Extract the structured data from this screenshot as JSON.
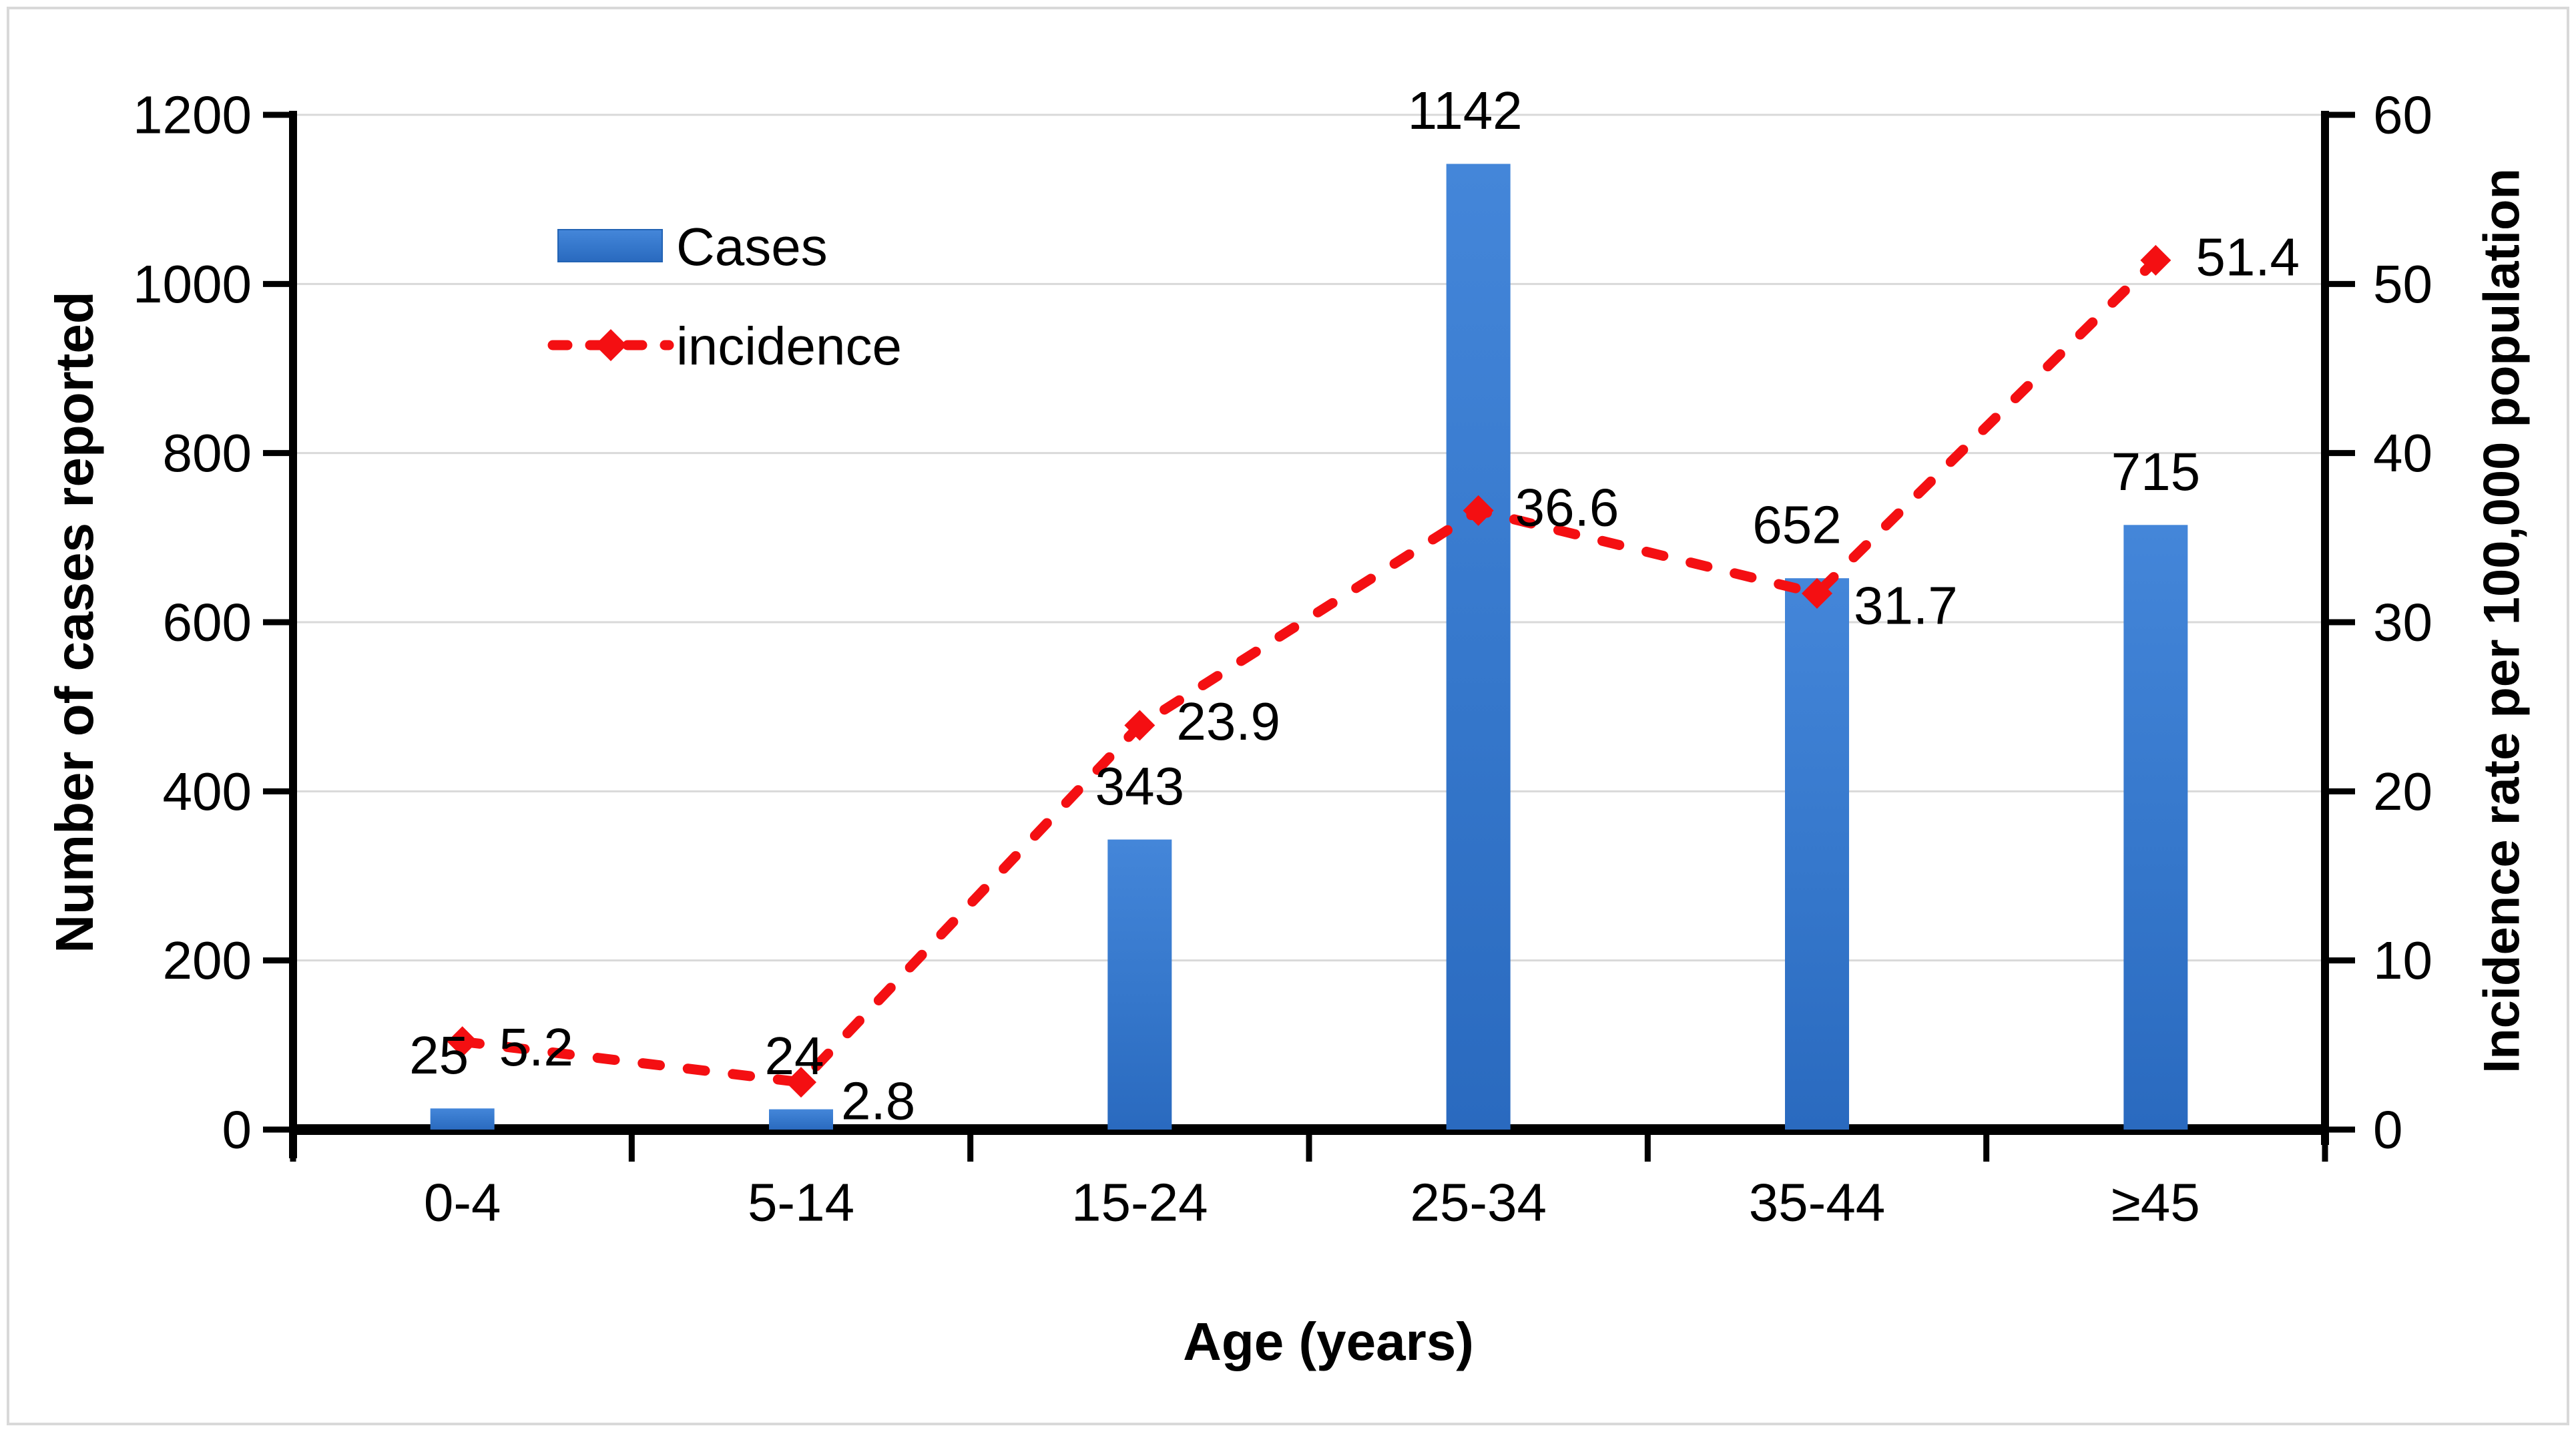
{
  "figure": {
    "background": "#ffffff",
    "border_color": "#d9d9d9"
  },
  "axes": {
    "x_title": "Age (years)",
    "y_left_title": "Number of cases reported",
    "y_right_title": "Incidence rate per 100,000 population"
  },
  "legend": {
    "items": [
      {
        "label": "Cases",
        "swatch": "blue-bar-swatch",
        "color": "#3577cb"
      },
      {
        "label": "incidence",
        "swatch": "red-dashed-diamond-line",
        "color": "#f40f12"
      }
    ],
    "position": "upper-left-inside"
  },
  "chart_data": {
    "type": "bar",
    "subtype": "combo-bar-line-dual-axis",
    "categories": [
      "0-4",
      "5-14",
      "15-24",
      "25-34",
      "35-44",
      "≥45"
    ],
    "series": [
      {
        "name": "Cases",
        "type": "bar",
        "axis": "left",
        "color": "#3577cb",
        "values": [
          25,
          24,
          343,
          1142,
          652,
          715
        ]
      },
      {
        "name": "incidence",
        "type": "line",
        "axis": "right",
        "color": "#f40f12",
        "line_style": "dashed",
        "marker": "diamond",
        "values": [
          5.2,
          2.8,
          23.9,
          36.6,
          31.7,
          51.4
        ]
      }
    ],
    "title": "",
    "xlabel": "Age (years)",
    "ylabel_left": "Number of cases reported",
    "ylabel_right": "Incidence rate per 100,000 population",
    "ylim_left": [
      0,
      1200
    ],
    "yticks_left": [
      0,
      200,
      400,
      600,
      800,
      1000,
      1200
    ],
    "ylim_right": [
      0,
      60
    ],
    "yticks_right": [
      0,
      10,
      20,
      30,
      40,
      50,
      60
    ],
    "grid": "horizontal-major",
    "grid_color": "#d9d9d9",
    "legend_position": "upper-left-inside",
    "bar_value_labels": [
      "25",
      "24",
      "343",
      "1142",
      "652",
      "715"
    ],
    "line_value_labels": [
      "5.2",
      "2.8",
      "23.9",
      "36.6",
      "31.7",
      "51.4"
    ],
    "layout_hints": {
      "bar_label_dx": [
        -35,
        -10,
        0,
        -20,
        -30,
        0
      ],
      "line_label_dx": [
        55,
        60,
        55,
        55,
        55,
        60
      ],
      "line_label_dy": [
        8,
        28,
        -6,
        -5,
        18,
        -5
      ]
    }
  }
}
